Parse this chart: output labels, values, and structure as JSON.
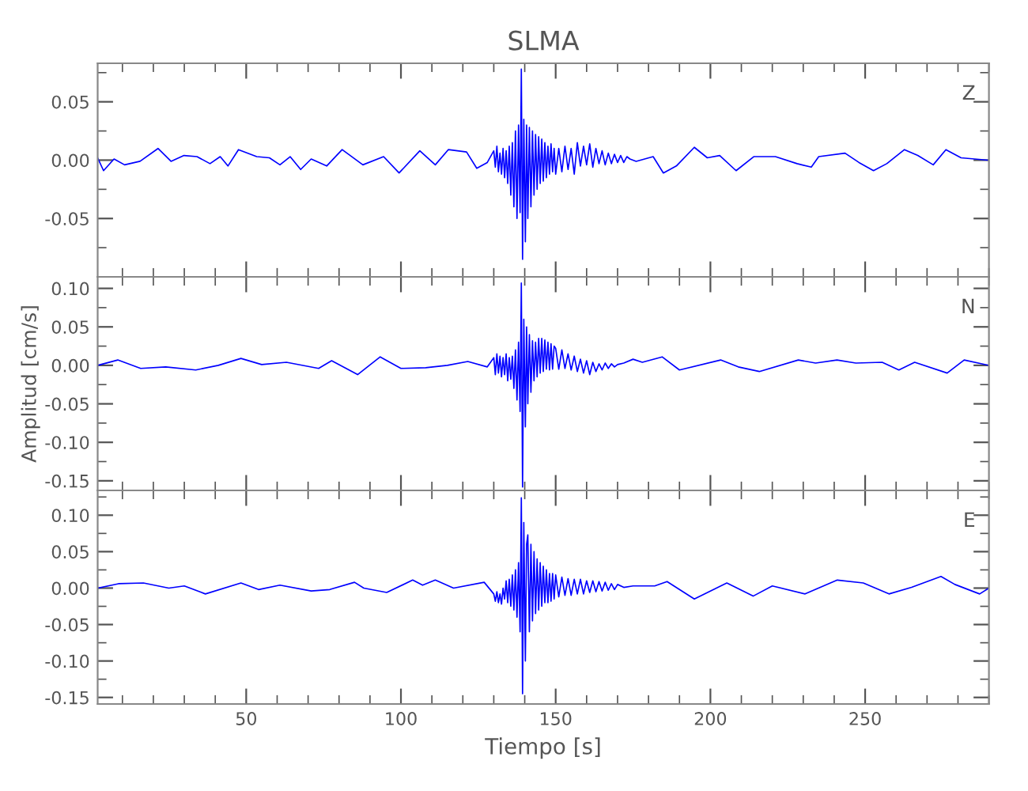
{
  "chart_data": [
    {
      "type": "line",
      "title": "SLMA",
      "xlim": [
        2,
        290
      ],
      "ylim": [
        -0.1,
        0.083
      ],
      "tick_labels": "y",
      "legend": false,
      "grid": false,
      "xticks": [
        50,
        100,
        150,
        200,
        250
      ],
      "yticks": [
        {
          "value": -0.05,
          "label": "-0.05"
        },
        {
          "value": 0,
          "label": "0.00"
        },
        {
          "value": 0.05,
          "label": "0.05"
        }
      ],
      "series": [
        {
          "name": "Z",
          "color": "#0000ff",
          "x": [
            2,
            3.9,
            7.3,
            10.7,
            15.7,
            21.5,
            25.7,
            29.9,
            34.1,
            38.3,
            41.6,
            44.1,
            47.5,
            53.4,
            57.5,
            60.9,
            64.2,
            67.6,
            71,
            76,
            81,
            87.7,
            94.4,
            99.4,
            106.1,
            111.1,
            115.3,
            121.2,
            124.5,
            127.9,
            130,
            130.5,
            131,
            131.5,
            132,
            132.5,
            133,
            133.5,
            134,
            134.5,
            135,
            135.5,
            136,
            136.5,
            137,
            137.5,
            138,
            138.5,
            138.9,
            139.3,
            139.7,
            140.2,
            140.6,
            141,
            141.5,
            142,
            142.5,
            143,
            143.5,
            144,
            144.5,
            145,
            145.5,
            146,
            146.5,
            147,
            147.5,
            148,
            148.5,
            149,
            149.5,
            150,
            151,
            152,
            153,
            154,
            155,
            156,
            157,
            158,
            159,
            160,
            161,
            162,
            163,
            164,
            165,
            166,
            167,
            168,
            169,
            170,
            171,
            172,
            173,
            174,
            176,
            181.5,
            184.8,
            189,
            194.8,
            199,
            203,
            208.3,
            214,
            221,
            228,
            232.6,
            235,
            243.5,
            248,
            252.7,
            257,
            262.7,
            267,
            272,
            276.1,
            281,
            289.5
          ],
          "values": [
            0.002,
            -0.009,
            0.001,
            -0.004,
            -0.001,
            0.01,
            -0.001,
            0.004,
            0.003,
            -0.003,
            0.003,
            -0.005,
            0.009,
            0.003,
            0.002,
            -0.004,
            0.003,
            -0.008,
            0.001,
            -0.005,
            0.009,
            -0.004,
            0.003,
            -0.011,
            0.008,
            -0.004,
            0.009,
            0.007,
            -0.007,
            -0.002,
            0.008,
            -0.006,
            0.012,
            -0.01,
            0.006,
            -0.012,
            0.01,
            -0.015,
            0.008,
            -0.02,
            0.012,
            -0.03,
            0.015,
            -0.04,
            0.025,
            -0.05,
            0.03,
            -0.045,
            0.078,
            -0.085,
            0.035,
            -0.07,
            0.03,
            -0.05,
            0.028,
            -0.04,
            0.025,
            -0.03,
            0.022,
            -0.025,
            0.02,
            -0.02,
            0.018,
            -0.018,
            0.015,
            -0.015,
            0.012,
            -0.012,
            0.014,
            -0.01,
            0.01,
            -0.012,
            0.01,
            -0.01,
            0.012,
            -0.008,
            0.01,
            -0.012,
            0.015,
            -0.005,
            0.012,
            -0.004,
            0.014,
            -0.006,
            0.01,
            -0.003,
            0.008,
            -0.004,
            0.006,
            -0.003,
            0.005,
            -0.002,
            0.004,
            -0.002,
            0.003,
            0.001,
            -0.001,
            0.003,
            -0.011,
            -0.005,
            0.011,
            0.002,
            0.004,
            -0.009,
            0.003,
            0.003,
            -0.003,
            -0.006,
            0.003,
            0.006,
            -0.002,
            -0.009,
            -0.003,
            0.009,
            0.004,
            -0.004,
            0.009,
            0.002,
            0.0
          ]
        }
      ]
    },
    {
      "type": "line",
      "ylabel": "Amplitud [cm/s]",
      "xlim": [
        2,
        290
      ],
      "ylim": [
        -0.1625,
        0.115
      ],
      "tick_labels": "y",
      "legend": false,
      "grid": false,
      "xticks": [
        50,
        100,
        150,
        200,
        250
      ],
      "yticks": [
        {
          "value": -0.15,
          "label": "-0.15"
        },
        {
          "value": -0.1,
          "label": "-0.10"
        },
        {
          "value": -0.05,
          "label": "-0.05"
        },
        {
          "value": 0,
          "label": "0.00"
        },
        {
          "value": 0.05,
          "label": "0.05"
        },
        {
          "value": 0.1,
          "label": "0.10"
        }
      ],
      "series": [
        {
          "name": "N",
          "color": "#0000ff",
          "x": [
            2,
            8.5,
            15.9,
            24,
            33.7,
            41,
            48.3,
            55,
            63,
            73.4,
            77.6,
            86,
            93.3,
            100,
            108,
            115,
            121.6,
            127.9,
            130,
            130.5,
            131,
            131.5,
            132,
            132.5,
            133,
            133.5,
            134,
            134.5,
            135,
            135.5,
            136,
            136.5,
            137,
            137.5,
            138,
            138.5,
            138.9,
            139.3,
            139.7,
            140.2,
            140.6,
            141,
            141.5,
            142,
            142.5,
            143,
            143.5,
            144,
            144.5,
            145,
            145.5,
            146,
            146.5,
            147,
            147.5,
            148,
            148.5,
            149,
            149.5,
            150,
            151,
            152,
            153,
            154,
            155,
            156,
            157,
            158,
            159,
            160,
            161,
            162,
            163,
            164,
            165,
            166,
            167,
            168,
            169,
            170,
            172,
            175,
            178,
            184.4,
            190,
            203.3,
            209,
            215.8,
            228.4,
            234,
            240.9,
            247,
            255.5,
            260.9,
            266,
            276.5,
            282,
            290
          ],
          "values": [
            0.0,
            0.007,
            -0.004,
            -0.002,
            -0.006,
            0.0,
            0.009,
            0.001,
            0.004,
            -0.004,
            0.006,
            -0.012,
            0.011,
            -0.004,
            -0.003,
            0.0,
            0.005,
            -0.002,
            0.01,
            -0.012,
            0.015,
            -0.01,
            0.012,
            -0.015,
            0.01,
            -0.012,
            0.015,
            -0.02,
            0.01,
            -0.018,
            0.012,
            -0.03,
            0.02,
            -0.045,
            0.03,
            -0.06,
            0.107,
            -0.158,
            0.06,
            -0.08,
            0.05,
            -0.05,
            0.04,
            -0.035,
            0.032,
            -0.02,
            0.03,
            -0.015,
            0.035,
            -0.01,
            0.035,
            -0.008,
            0.033,
            -0.005,
            0.03,
            -0.006,
            0.028,
            -0.005,
            0.025,
            0.022,
            -0.005,
            0.02,
            -0.004,
            0.015,
            -0.006,
            0.012,
            -0.008,
            0.008,
            -0.01,
            0.006,
            -0.012,
            0.004,
            -0.008,
            0.002,
            -0.006,
            0.003,
            -0.004,
            0.002,
            -0.002,
            0.001,
            0.003,
            0.008,
            0.004,
            0.011,
            -0.006,
            0.007,
            -0.002,
            -0.008,
            0.007,
            0.003,
            0.007,
            0.003,
            0.004,
            -0.006,
            0.004,
            -0.01,
            0.007,
            0.0
          ]
        }
      ]
    },
    {
      "type": "line",
      "xlabel": "Tiempo [s]",
      "xlim": [
        2,
        290
      ],
      "ylim": [
        -0.159,
        0.134
      ],
      "legend": false,
      "grid": false,
      "xticks": [
        50,
        100,
        150,
        200,
        250
      ],
      "yticks": [
        {
          "value": -0.15,
          "label": "-0.15"
        },
        {
          "value": -0.1,
          "label": "-0.10"
        },
        {
          "value": -0.05,
          "label": "-0.05"
        },
        {
          "value": 0,
          "label": "0.00"
        },
        {
          "value": 0.05,
          "label": "0.05"
        },
        {
          "value": 0.1,
          "label": "0.10"
        }
      ],
      "series": [
        {
          "name": "E",
          "color": "#0000ff",
          "x": [
            2,
            8.7,
            16.8,
            25,
            30,
            36.8,
            48.3,
            54,
            60.9,
            71,
            77,
            85,
            88,
            95.4,
            103.8,
            107,
            111.1,
            117,
            126.9,
            130,
            130.5,
            131,
            131.5,
            132,
            132.5,
            133,
            133.5,
            134,
            134.5,
            135,
            135.5,
            136,
            136.5,
            137,
            137.5,
            138,
            138.5,
            138.9,
            139.3,
            139.7,
            140.2,
            140.6,
            141,
            141.5,
            142,
            142.5,
            143,
            143.5,
            144,
            144.5,
            145,
            145.5,
            146,
            146.5,
            147,
            147.5,
            148,
            148.5,
            149,
            149.5,
            150,
            151,
            152,
            153,
            154,
            155,
            156,
            157,
            158,
            159,
            160,
            161,
            162,
            163,
            164,
            165,
            166,
            167,
            168,
            169,
            170,
            172,
            175,
            182,
            186,
            194.8,
            205.3,
            213.8,
            220,
            230.6,
            241,
            249.4,
            257.7,
            265,
            274.5,
            279,
            287,
            290
          ],
          "values": [
            0.0,
            0.006,
            0.007,
            0.0,
            0.003,
            -0.008,
            0.007,
            -0.002,
            0.004,
            -0.004,
            -0.002,
            0.008,
            0.0,
            -0.006,
            0.011,
            0.004,
            0.011,
            0.0,
            0.008,
            -0.008,
            -0.018,
            -0.005,
            -0.02,
            -0.008,
            -0.022,
            0.0,
            -0.015,
            0.01,
            -0.02,
            0.012,
            -0.025,
            0.018,
            -0.03,
            0.025,
            -0.04,
            0.035,
            -0.06,
            0.124,
            -0.145,
            0.09,
            -0.1,
            0.06,
            0.073,
            -0.06,
            0.06,
            -0.045,
            0.05,
            -0.035,
            0.04,
            -0.03,
            0.035,
            -0.025,
            0.03,
            -0.02,
            0.025,
            -0.02,
            0.02,
            -0.018,
            0.02,
            -0.015,
            0.018,
            -0.012,
            0.015,
            -0.01,
            0.013,
            -0.01,
            0.012,
            -0.008,
            0.012,
            -0.008,
            0.01,
            -0.006,
            0.01,
            -0.005,
            0.009,
            -0.004,
            0.008,
            -0.003,
            0.006,
            -0.002,
            0.005,
            0.001,
            0.003,
            0.003,
            0.009,
            -0.015,
            0.007,
            -0.011,
            0.003,
            -0.008,
            0.011,
            0.007,
            -0.008,
            0.001,
            0.016,
            0.005,
            -0.008,
            0.0
          ]
        }
      ]
    }
  ]
}
